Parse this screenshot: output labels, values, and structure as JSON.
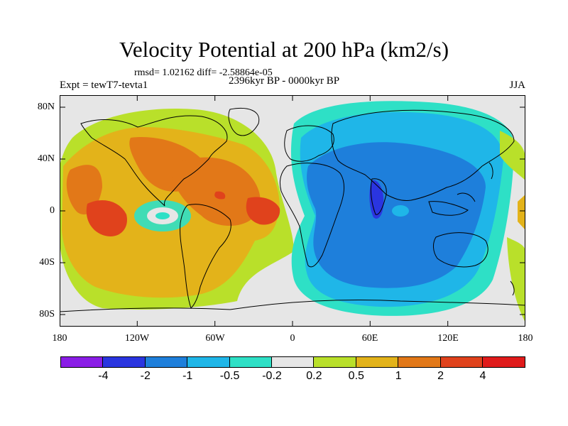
{
  "header": {
    "title": "Velocity Potential at 200 hPa (km2/s)",
    "stats": "rmsd= 1.02162 diff= -2.58864e-05",
    "experiment": "Expt = tewT7-tevta1",
    "period": "2396kyr BP - 0000kyr BP",
    "season": "JJA"
  },
  "map": {
    "lat_ticks": [
      "80N",
      "40N",
      "0",
      "40S",
      "80S"
    ],
    "lon_ticks": [
      "180",
      "120W",
      "60W",
      "0",
      "60E",
      "120E",
      "180"
    ]
  },
  "colorbar": {
    "colors": [
      "#8a1de6",
      "#2a35e0",
      "#1e7fdb",
      "#1fb6e8",
      "#2ee0c6",
      "#e6e6e6",
      "#b9e02a",
      "#e3b31a",
      "#e27818",
      "#e0421c",
      "#e01b1b"
    ],
    "labels": [
      "-4",
      "-2",
      "-1",
      "-0.5",
      "-0.2",
      "0.2",
      "0.5",
      "1",
      "2",
      "4"
    ]
  }
}
